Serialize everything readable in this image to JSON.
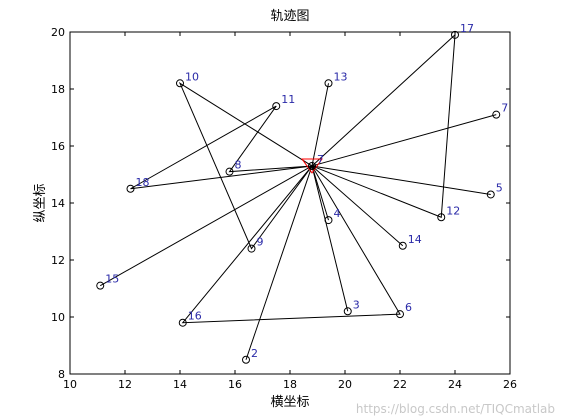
{
  "chart_data": {
    "type": "scatter",
    "title": "轨迹图",
    "xlabel": "横坐标",
    "ylabel": "纵坐标",
    "xlim": [
      10,
      26
    ],
    "ylim": [
      8,
      20
    ],
    "xticks": [
      10,
      12,
      14,
      16,
      18,
      20,
      22,
      24,
      26
    ],
    "yticks": [
      8,
      10,
      12,
      14,
      16,
      18,
      20
    ],
    "grid": false,
    "hub": {
      "label": "7",
      "x": 18.8,
      "y": 15.3
    },
    "points": [
      {
        "label": "2",
        "x": 16.4,
        "y": 8.5
      },
      {
        "label": "3",
        "x": 20.1,
        "y": 10.2
      },
      {
        "label": "4",
        "x": 19.4,
        "y": 13.4
      },
      {
        "label": "5",
        "x": 25.3,
        "y": 14.3
      },
      {
        "label": "6",
        "x": 22.0,
        "y": 10.1
      },
      {
        "label": "7",
        "x": 25.5,
        "y": 17.1
      },
      {
        "label": "8",
        "x": 15.8,
        "y": 15.1
      },
      {
        "label": "9",
        "x": 16.6,
        "y": 12.4
      },
      {
        "label": "10",
        "x": 14.0,
        "y": 18.2
      },
      {
        "label": "11",
        "x": 17.5,
        "y": 17.4
      },
      {
        "label": "12",
        "x": 23.5,
        "y": 13.5
      },
      {
        "label": "13",
        "x": 19.4,
        "y": 18.2
      },
      {
        "label": "14",
        "x": 22.1,
        "y": 12.5
      },
      {
        "label": "15",
        "x": 11.1,
        "y": 11.1
      },
      {
        "label": "16",
        "x": 14.1,
        "y": 9.8
      },
      {
        "label": "17",
        "x": 24.0,
        "y": 19.9
      },
      {
        "label": "18",
        "x": 12.2,
        "y": 14.5
      }
    ],
    "routes": [
      [
        "hub",
        "2",
        "hub"
      ],
      [
        "hub",
        "3",
        "hub"
      ],
      [
        "hub",
        "4",
        "hub"
      ],
      [
        "hub",
        "5",
        "hub"
      ],
      [
        "hub",
        "6",
        "16",
        "hub"
      ],
      [
        "hub",
        "7",
        "hub"
      ],
      [
        "hub",
        "8",
        "11",
        "18",
        "hub"
      ],
      [
        "hub",
        "10",
        "9",
        "hub"
      ],
      [
        "hub",
        "13",
        "hub"
      ],
      [
        "hub",
        "14",
        "hub"
      ],
      [
        "hub",
        "15",
        "hub"
      ],
      [
        "hub",
        "17",
        "12",
        "hub"
      ]
    ],
    "colors": {
      "line": "#000000",
      "marker": "#000000",
      "label": "#2a2aa8",
      "hub_marker": "#ff0000"
    }
  },
  "watermark": "https://blog.csdn.net/TIQCmatlab"
}
